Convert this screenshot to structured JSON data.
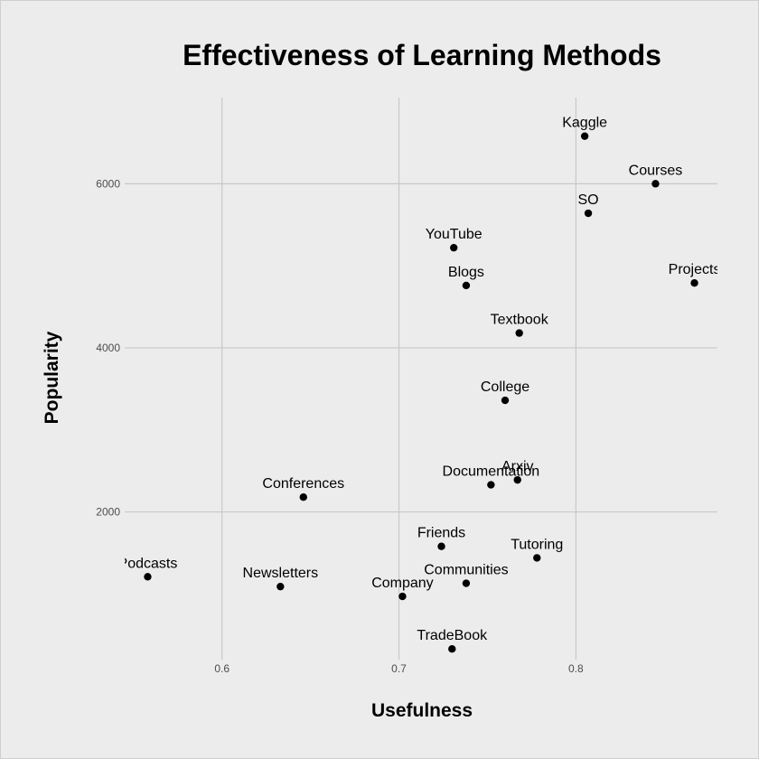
{
  "chart_data": {
    "type": "scatter",
    "title": "Effectiveness of Learning Methods",
    "xlabel": "Usefulness",
    "ylabel": "Popularity",
    "xlim": [
      0.545,
      0.88
    ],
    "ylim": [
      200,
      7050
    ],
    "x_ticks": [
      0.6,
      0.7,
      0.8
    ],
    "y_ticks": [
      2000,
      4000,
      6000
    ],
    "x_tick_labels": [
      "0.6",
      "0.7",
      "0.8"
    ],
    "y_tick_labels": [
      "2000",
      "4000",
      "6000"
    ],
    "grid": true,
    "points": [
      {
        "label": "Kaggle",
        "x": 0.805,
        "y": 6580
      },
      {
        "label": "Courses",
        "x": 0.845,
        "y": 6000
      },
      {
        "label": "SO",
        "x": 0.807,
        "y": 5640
      },
      {
        "label": "YouTube",
        "x": 0.731,
        "y": 5220
      },
      {
        "label": "Projects",
        "x": 0.867,
        "y": 4790
      },
      {
        "label": "Blogs",
        "x": 0.738,
        "y": 4760
      },
      {
        "label": "Textbook",
        "x": 0.768,
        "y": 4180
      },
      {
        "label": "College",
        "x": 0.76,
        "y": 3360
      },
      {
        "label": "Arxiv",
        "x": 0.767,
        "y": 2390
      },
      {
        "label": "Documentation",
        "x": 0.752,
        "y": 2330
      },
      {
        "label": "Conferences",
        "x": 0.646,
        "y": 2180
      },
      {
        "label": "Friends",
        "x": 0.724,
        "y": 1580
      },
      {
        "label": "Tutoring",
        "x": 0.778,
        "y": 1440
      },
      {
        "label": "Podcasts",
        "x": 0.558,
        "y": 1210
      },
      {
        "label": "Communities",
        "x": 0.738,
        "y": 1130
      },
      {
        "label": "Newsletters",
        "x": 0.633,
        "y": 1090
      },
      {
        "label": "Company",
        "x": 0.702,
        "y": 970
      },
      {
        "label": "TradeBook",
        "x": 0.73,
        "y": 330
      }
    ]
  }
}
